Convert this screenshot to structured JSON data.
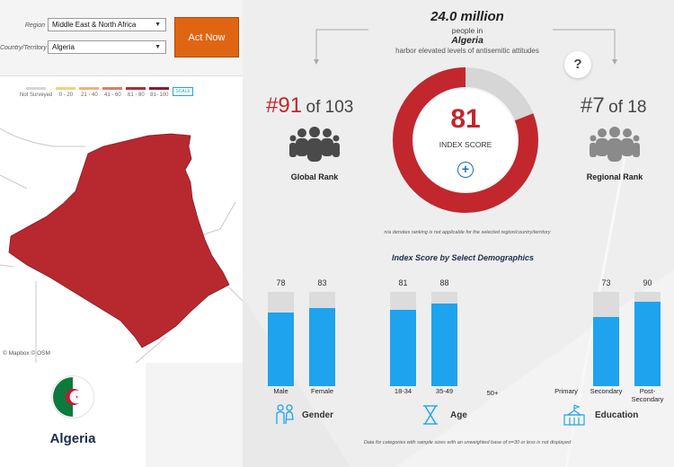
{
  "filters": {
    "region_label": "Region",
    "region_value": "Middle East & North Africa",
    "country_label": "Country/Territory",
    "country_value": "Algeria",
    "act_now_label": "Act Now"
  },
  "legend": {
    "items": [
      {
        "label": "Not Surveyed",
        "color": "#d6d6d6"
      },
      {
        "label": "0 - 20",
        "color": "#f2d276"
      },
      {
        "label": "21 - 40",
        "color": "#f0b27a"
      },
      {
        "label": "41 - 60",
        "color": "#e07d62"
      },
      {
        "label": "61 - 80",
        "color": "#b22b2f"
      },
      {
        "label": "81- 100",
        "color": "#8e1b24"
      }
    ],
    "scale_label": "SCALE"
  },
  "map": {
    "attribution": "© Mapbox © OSM",
    "fill_color": "#b7292f"
  },
  "country": {
    "name": "Algeria"
  },
  "headline": {
    "population": "24.0 million",
    "line1": "people in",
    "country": "Algeria",
    "line2": "harbor elevated levels of antisemitic attitudes"
  },
  "help_icon": "?",
  "global_rank": {
    "rank": "#91",
    "of": "of 103",
    "label": "Global Rank"
  },
  "regional_rank": {
    "rank": "#7",
    "of": "of 18",
    "label": "Regional Rank"
  },
  "index_score": {
    "value": 81,
    "label": "INDEX SCORE",
    "plus": "+",
    "ring_color": "#c1272d",
    "rest_color": "#d6d6d6"
  },
  "na_note": "n/a denotes ranking is not applicable for the selected region/country/territory",
  "demographics_title": "Index Score by Select Demographics",
  "bar_color": "#1ea3ee",
  "groups": {
    "gender": {
      "label": "Gender",
      "bars": [
        {
          "category": "Male",
          "value": 78,
          "display": "78"
        },
        {
          "category": "Female",
          "value": 83,
          "display": "83"
        }
      ]
    },
    "age": {
      "label": "Age",
      "bars": [
        {
          "category": "18-34",
          "value": 81,
          "display": "81"
        },
        {
          "category": "35-49",
          "value": 88,
          "display": "88"
        }
      ],
      "extra_category": "50+"
    },
    "education": {
      "label": "Education",
      "extra_category": "Primary",
      "bars": [
        {
          "category": "Secondary",
          "value": 73,
          "display": "73"
        },
        {
          "category": "Post-\nSecondary",
          "value": 90,
          "display": "90"
        }
      ]
    }
  },
  "footnote": "Data for categories with sample sizes with an unweighted base of n=30 or less is not displayed"
}
